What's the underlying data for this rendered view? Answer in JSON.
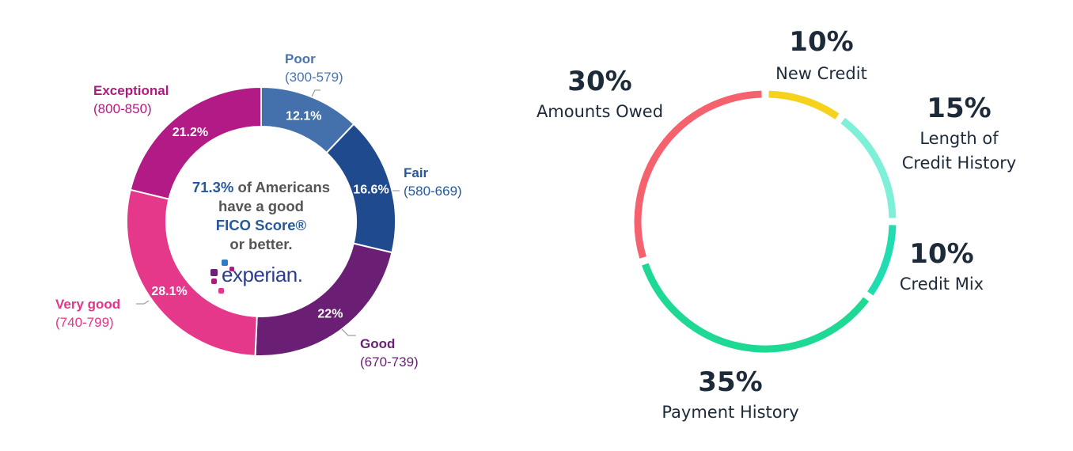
{
  "chart_data": [
    {
      "type": "pie",
      "donut": true,
      "slices": [
        {
          "name": "Poor",
          "range": "(300-579)",
          "value": 12.1,
          "label": "12.1%",
          "color": "#4470ab",
          "text_color": "#4a74ad"
        },
        {
          "name": "Fair",
          "range": "(580-669)",
          "value": 16.6,
          "label": "16.6%",
          "color": "#1f4a8e",
          "text_color": "#26589a"
        },
        {
          "name": "Good",
          "range": "(670-739)",
          "value": 22.0,
          "label": "22%",
          "color": "#6a1f75",
          "text_color": "#6a2274"
        },
        {
          "name": "Very good",
          "range": "(740-799)",
          "value": 28.1,
          "label": "28.1%",
          "color": "#e5388b",
          "text_color": "#e0378a"
        },
        {
          "name": "Exceptional",
          "range": "(800-850)",
          "value": 21.2,
          "label": "21.2%",
          "color": "#b21a85",
          "text_color": "#b0197f"
        }
      ],
      "center_text": {
        "highlight": "71.3%",
        "line1_rest": " of Americans",
        "line2": "have a good",
        "line3": "FICO Score®",
        "line4": "or better."
      },
      "logo_text": "experian."
    },
    {
      "type": "pie",
      "ring": true,
      "slices": [
        {
          "name": "New Credit",
          "value": 10,
          "label": "10%",
          "color": "#f7d21c"
        },
        {
          "name": "Length of Credit History",
          "lines": [
            "Length of",
            "Credit History"
          ],
          "value": 15,
          "label": "15%",
          "color": "#7ef0d8"
        },
        {
          "name": "Credit Mix",
          "value": 10,
          "label": "10%",
          "color": "#20dcb1"
        },
        {
          "name": "Payment History",
          "value": 35,
          "label": "35%",
          "color": "#1ed993"
        },
        {
          "name": "Amounts Owed",
          "value": 30,
          "label": "30%",
          "color": "#f5616c"
        }
      ],
      "label_color": "#1c2a3a"
    }
  ]
}
